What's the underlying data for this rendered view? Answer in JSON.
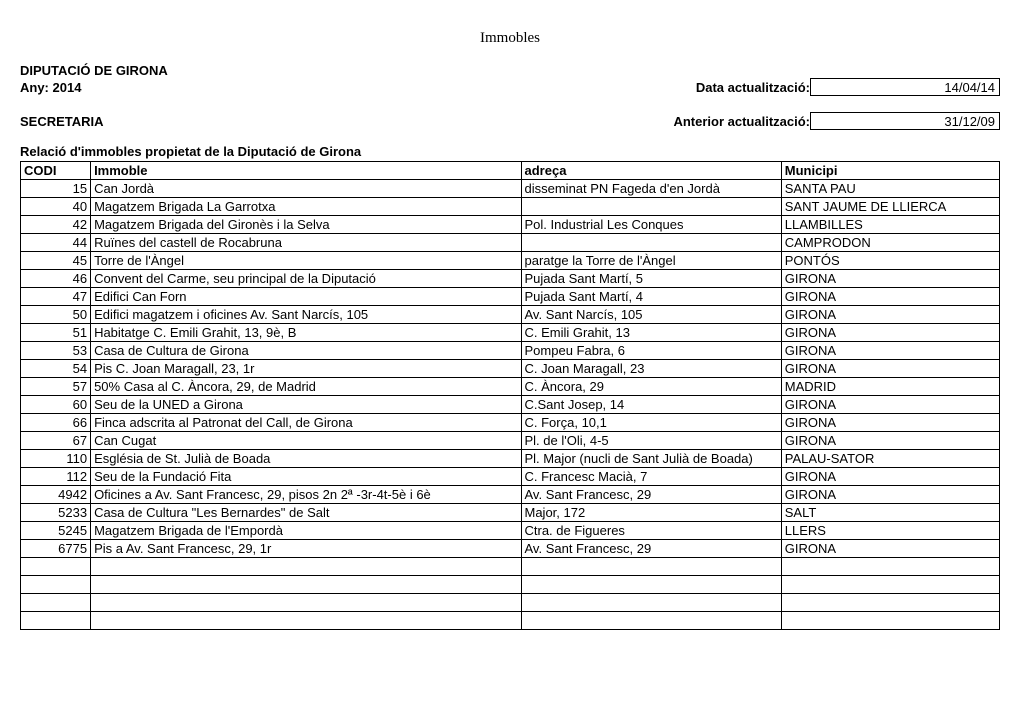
{
  "page_title": "Immobles",
  "header": {
    "org": "DIPUTACIÓ DE GIRONA",
    "year_line": "Any: 2014",
    "dept": "SECRETARIA",
    "date_label": "Data actualització:",
    "date_value": "14/04/14",
    "prev_label": "Anterior actualització:",
    "prev_value": "31/12/09"
  },
  "section_title": "Relació d'immobles propietat de la Diputació de Girona",
  "table": {
    "columns": [
      "CODI",
      "Immoble",
      "adreça",
      "Municipi"
    ],
    "rows": [
      [
        "15",
        "Can Jordà",
        "disseminat PN Fageda d'en Jordà",
        "SANTA PAU"
      ],
      [
        "40",
        "Magatzem Brigada La Garrotxa",
        "",
        "SANT JAUME DE LLIERCA"
      ],
      [
        "42",
        "Magatzem Brigada del Gironès i la Selva",
        "Pol. Industrial Les Conques",
        "LLAMBILLES"
      ],
      [
        "44",
        "Ruïnes del castell de Rocabruna",
        "",
        "CAMPRODON"
      ],
      [
        "45",
        "Torre de l'Àngel",
        "paratge la Torre de l'Àngel",
        "PONTÓS"
      ],
      [
        "46",
        "Convent del Carme, seu principal de la Diputació",
        "Pujada Sant Martí, 5",
        "GIRONA"
      ],
      [
        "47",
        "Edifici Can Forn",
        "Pujada Sant Martí, 4",
        "GIRONA"
      ],
      [
        "50",
        "Edifici magatzem i oficines Av. Sant Narcís, 105",
        "Av. Sant Narcís, 105",
        "GIRONA"
      ],
      [
        "51",
        "Habitatge C. Emili Grahit, 13, 9è, B",
        "C. Emili Grahit, 13",
        "GIRONA"
      ],
      [
        "53",
        "Casa de Cultura de Girona",
        "Pompeu Fabra, 6",
        "GIRONA"
      ],
      [
        "54",
        "Pis C. Joan Maragall, 23, 1r",
        "C. Joan Maragall, 23",
        "GIRONA"
      ],
      [
        "57",
        "50% Casa al C. Àncora, 29, de Madrid",
        "C. Àncora, 29",
        "MADRID"
      ],
      [
        "60",
        "Seu de la UNED a Girona",
        "C.Sant Josep, 14",
        "GIRONA"
      ],
      [
        "66",
        "Finca adscrita al Patronat del Call, de Girona",
        "C. Força, 10,1",
        "GIRONA"
      ],
      [
        "67",
        "Can Cugat",
        "Pl. de l'Oli, 4-5",
        "GIRONA"
      ],
      [
        "110",
        "Església de St. Julià de Boada",
        "Pl. Major (nucli de Sant Julià de Boada)",
        "PALAU-SATOR"
      ],
      [
        "112",
        "Seu de la Fundació Fita",
        "C. Francesc Macià, 7",
        "GIRONA"
      ],
      [
        "4942",
        "Oficines a Av. Sant Francesc, 29, pisos 2n 2ª -3r-4t-5è i 6è",
        "Av. Sant Francesc, 29",
        "GIRONA"
      ],
      [
        "5233",
        "Casa de Cultura \"Les Bernardes\" de Salt",
        "Major, 172",
        "SALT"
      ],
      [
        "5245",
        "Magatzem Brigada de l'Empordà",
        "Ctra. de Figueres",
        "LLERS"
      ],
      [
        "6775",
        "Pis a Av. Sant Francesc, 29, 1r",
        "Av. Sant Francesc, 29",
        "GIRONA"
      ],
      [
        "",
        "",
        "",
        ""
      ],
      [
        "",
        "",
        "",
        ""
      ],
      [
        "",
        "",
        "",
        ""
      ],
      [
        "",
        "",
        "",
        ""
      ]
    ]
  }
}
